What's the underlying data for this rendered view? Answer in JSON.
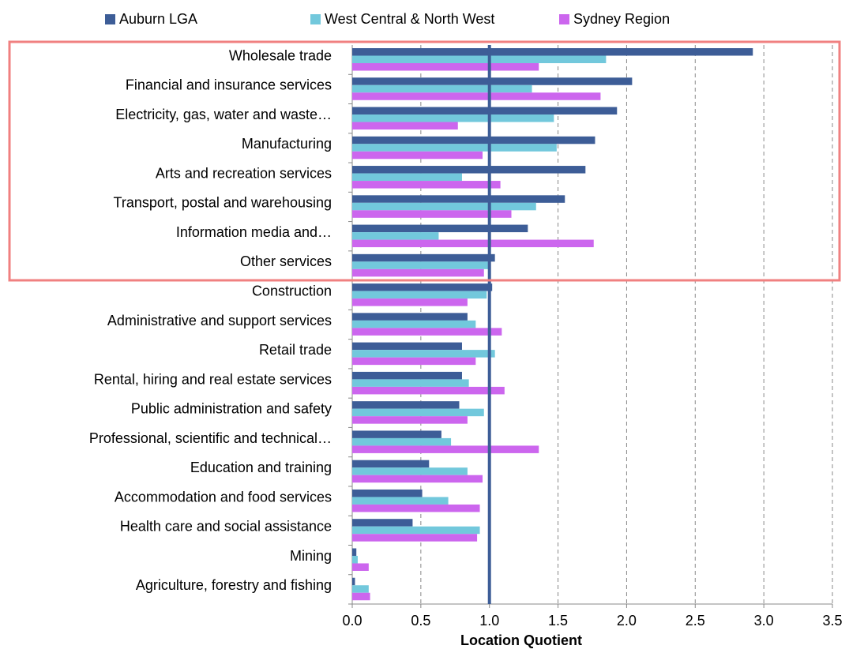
{
  "chart_data": {
    "type": "barh",
    "xlabel": "Location Quotient",
    "categories": [
      "Wholesale trade",
      "Financial and insurance services",
      "Electricity, gas, water and waste…",
      "Manufacturing",
      "Arts and recreation services",
      "Transport, postal and warehousing",
      "Information media and…",
      "Other services",
      "Construction",
      "Administrative and support services",
      "Retail trade",
      "Rental, hiring and real estate services",
      "Public administration and safety",
      "Professional, scientific and technical…",
      "Education and training",
      "Accommodation and food services",
      "Health care and social assistance",
      "Mining",
      "Agriculture, forestry and fishing"
    ],
    "series": [
      {
        "name": "Auburn LGA",
        "color": "#3d5d97",
        "values": [
          2.92,
          2.04,
          1.93,
          1.77,
          1.7,
          1.55,
          1.28,
          1.04,
          1.02,
          0.84,
          0.8,
          0.8,
          0.78,
          0.65,
          0.56,
          0.51,
          0.44,
          0.03,
          0.02
        ]
      },
      {
        "name": "West Central & North West",
        "color": "#72c8dc",
        "values": [
          1.85,
          1.31,
          1.47,
          1.49,
          0.8,
          1.34,
          0.63,
          1.01,
          0.98,
          0.9,
          1.04,
          0.85,
          0.96,
          0.72,
          0.84,
          0.7,
          0.93,
          0.04,
          0.12
        ]
      },
      {
        "name": "Sydney Region",
        "color": "#cc66ee",
        "values": [
          1.36,
          1.81,
          0.77,
          0.95,
          1.08,
          1.16,
          1.76,
          0.96,
          0.84,
          1.09,
          0.9,
          1.11,
          0.84,
          1.36,
          0.95,
          0.93,
          0.91,
          0.12,
          0.13
        ]
      }
    ],
    "reference_line": 1,
    "xlim": [
      0,
      3.5
    ],
    "xticks": [
      {
        "value": 0,
        "label": "0.0"
      },
      0.5,
      {
        "value": 1,
        "label": "1.0"
      },
      1.5,
      {
        "value": 2,
        "label": "2.0"
      },
      2.5,
      {
        "value": 3,
        "label": "3.0"
      },
      3.5
    ],
    "grid": true,
    "legend": "top"
  }
}
